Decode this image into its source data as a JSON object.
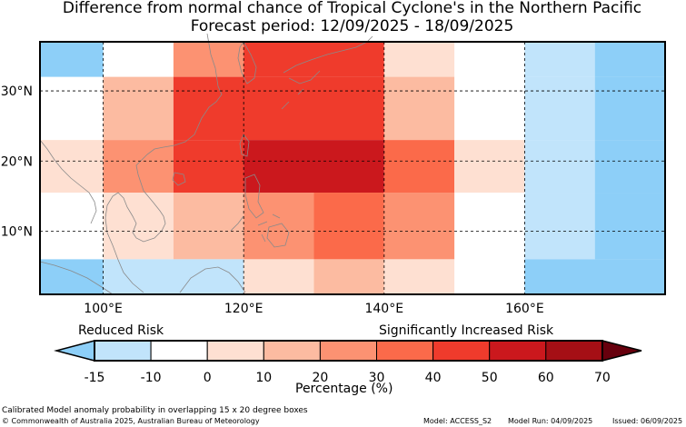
{
  "title": {
    "line1": "Difference from normal chance of Tropical Cyclone's in the Northern Pacific",
    "line2": "Forecast period: 12/09/2025 - 18/09/2025"
  },
  "map": {
    "lon_range": [
      91,
      180
    ],
    "lat_range": [
      1,
      37
    ],
    "x_ticks": [
      {
        "value": 100,
        "label": "100°E"
      },
      {
        "value": 120,
        "label": "120°E"
      },
      {
        "value": 140,
        "label": "140°E"
      },
      {
        "value": 160,
        "label": "160°E"
      }
    ],
    "y_ticks": [
      {
        "value": 30,
        "label": "30°N"
      },
      {
        "value": 20,
        "label": "20°N"
      },
      {
        "value": 10,
        "label": "10°N"
      }
    ],
    "grid": "dashed",
    "cells": [
      {
        "lon": [
          91,
          100
        ],
        "lat": [
          32,
          37
        ],
        "bin": "-15_-10"
      },
      {
        "lon": [
          110,
          120
        ],
        "lat": [
          32,
          37
        ],
        "bin": "20_30"
      },
      {
        "lon": [
          120,
          140
        ],
        "lat": [
          32,
          37
        ],
        "bin": "40_50"
      },
      {
        "lon": [
          140,
          150
        ],
        "lat": [
          32,
          37
        ],
        "bin": "0_10"
      },
      {
        "lon": [
          160,
          170
        ],
        "lat": [
          32,
          37
        ],
        "bin": "-10_0_light"
      },
      {
        "lon": [
          170,
          180
        ],
        "lat": [
          32,
          37
        ],
        "bin": "-15_-10"
      },
      {
        "lon": [
          100,
          110
        ],
        "lat": [
          23,
          32
        ],
        "bin": "10_20"
      },
      {
        "lon": [
          110,
          140
        ],
        "lat": [
          23,
          32
        ],
        "bin": "40_50"
      },
      {
        "lon": [
          140,
          150
        ],
        "lat": [
          23,
          32
        ],
        "bin": "10_20"
      },
      {
        "lon": [
          160,
          170
        ],
        "lat": [
          23,
          32
        ],
        "bin": "-10_0_light"
      },
      {
        "lon": [
          170,
          180
        ],
        "lat": [
          23,
          32
        ],
        "bin": "-15_-10"
      },
      {
        "lon": [
          91,
          100
        ],
        "lat": [
          15.5,
          23
        ],
        "bin": "0_10"
      },
      {
        "lon": [
          100,
          110
        ],
        "lat": [
          15.5,
          23
        ],
        "bin": "20_30"
      },
      {
        "lon": [
          110,
          120
        ],
        "lat": [
          15.5,
          23
        ],
        "bin": "40_50"
      },
      {
        "lon": [
          120,
          140
        ],
        "lat": [
          15.5,
          23
        ],
        "bin": "50_60"
      },
      {
        "lon": [
          140,
          150
        ],
        "lat": [
          15.5,
          23
        ],
        "bin": "30_40"
      },
      {
        "lon": [
          150,
          160
        ],
        "lat": [
          15.5,
          23
        ],
        "bin": "0_10"
      },
      {
        "lon": [
          160,
          170
        ],
        "lat": [
          15.5,
          23
        ],
        "bin": "-10_0_light"
      },
      {
        "lon": [
          170,
          180
        ],
        "lat": [
          15.5,
          23
        ],
        "bin": "-15_-10"
      },
      {
        "lon": [
          100,
          110
        ],
        "lat": [
          6,
          15.5
        ],
        "bin": "0_10"
      },
      {
        "lon": [
          110,
          120
        ],
        "lat": [
          6,
          15.5
        ],
        "bin": "10_20"
      },
      {
        "lon": [
          120,
          130
        ],
        "lat": [
          6,
          15.5
        ],
        "bin": "20_30"
      },
      {
        "lon": [
          130,
          140
        ],
        "lat": [
          6,
          15.5
        ],
        "bin": "30_40"
      },
      {
        "lon": [
          140,
          150
        ],
        "lat": [
          6,
          15.5
        ],
        "bin": "20_30"
      },
      {
        "lon": [
          160,
          170
        ],
        "lat": [
          6,
          15.5
        ],
        "bin": "-10_0_light"
      },
      {
        "lon": [
          170,
          180
        ],
        "lat": [
          6,
          15.5
        ],
        "bin": "-15_-10"
      },
      {
        "lon": [
          91,
          100
        ],
        "lat": [
          1,
          6
        ],
        "bin": "-15_-10"
      },
      {
        "lon": [
          100,
          120
        ],
        "lat": [
          1,
          6
        ],
        "bin": "-10_0_light"
      },
      {
        "lon": [
          120,
          130
        ],
        "lat": [
          1,
          6
        ],
        "bin": "0_10"
      },
      {
        "lon": [
          130,
          140
        ],
        "lat": [
          1,
          6
        ],
        "bin": "10_20"
      },
      {
        "lon": [
          140,
          150
        ],
        "lat": [
          1,
          6
        ],
        "bin": "0_10"
      },
      {
        "lon": [
          160,
          180
        ],
        "lat": [
          1,
          6
        ],
        "bin": "-15_-10"
      }
    ]
  },
  "colorbar": {
    "left_text": "Reduced Risk",
    "right_text": "Significantly Increased Risk",
    "xlabel": "Percentage (%)",
    "ticks": [
      "-15",
      "-10",
      "0",
      "10",
      "20",
      "30",
      "40",
      "50",
      "60",
      "70"
    ],
    "bins": [
      {
        "key": "-15_-10",
        "color": "#8dcff8"
      },
      {
        "key": "-10_0_light",
        "color": "#c1e4fb"
      },
      {
        "key": "-10_0",
        "color": "#ffffff"
      },
      {
        "key": "0_10",
        "color": "#fee0d2"
      },
      {
        "key": "10_20",
        "color": "#fcbba1"
      },
      {
        "key": "20_30",
        "color": "#fc9272"
      },
      {
        "key": "30_40",
        "color": "#fb6a4a"
      },
      {
        "key": "40_50",
        "color": "#ef3b2c"
      },
      {
        "key": "50_60",
        "color": "#cb181d"
      },
      {
        "key": "60_70",
        "color": "#a50f15"
      },
      {
        "key": "over_70",
        "color": "#67000d"
      }
    ]
  },
  "footer": {
    "note": "Calibrated Model anomaly probability in overlapping 15 x 20 degree boxes",
    "copyright": "© Commonwealth of Australia 2025, Australian Bureau of Meteorology",
    "model": "Model: ACCESS_S2",
    "run": "Model Run: 04/09/2025",
    "issued": "Issued: 06/09/2025"
  }
}
